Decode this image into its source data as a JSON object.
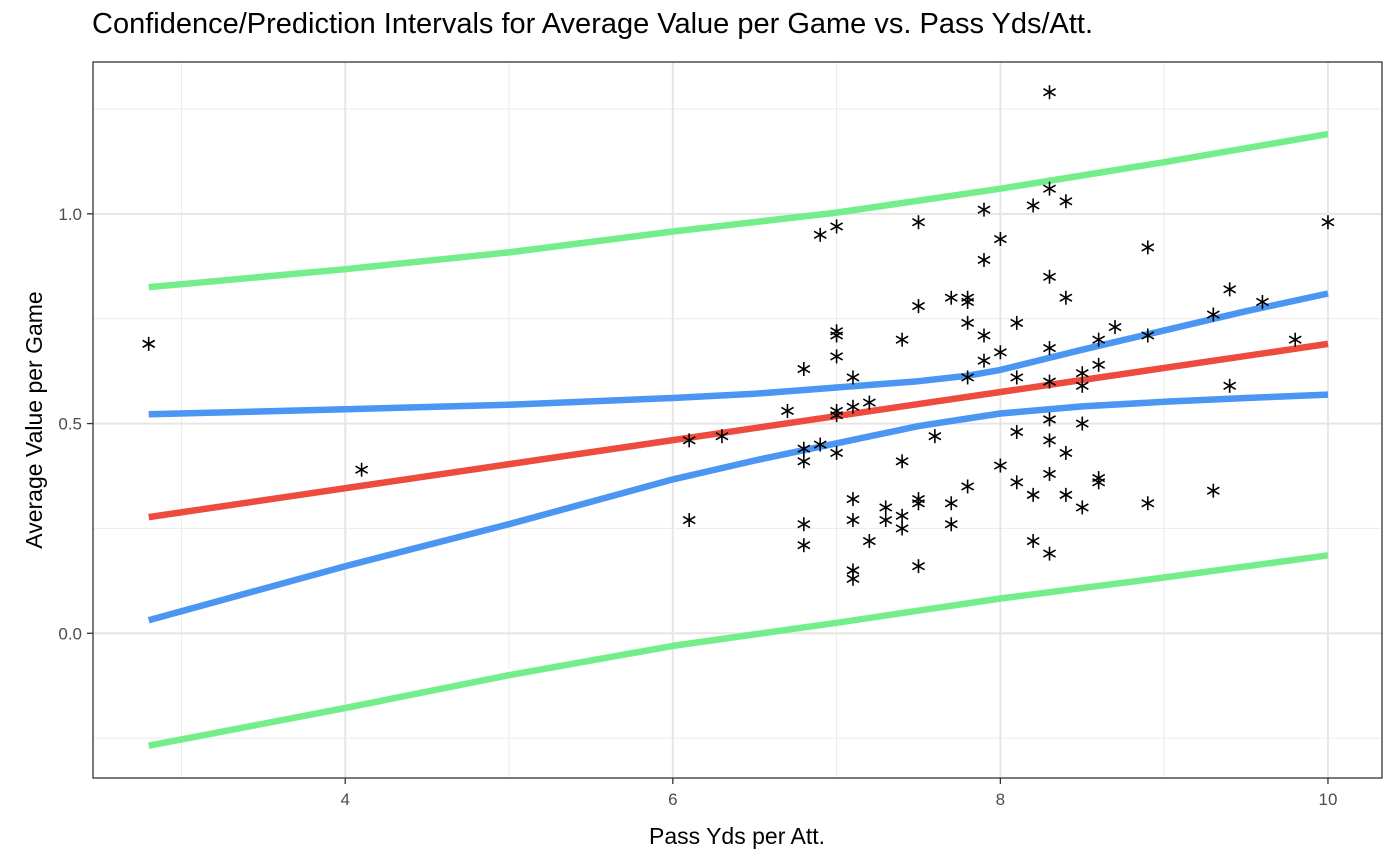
{
  "chart_data": {
    "type": "scatter",
    "title": "Confidence/Prediction Intervals for Average Value per Game vs. Pass Yds/Att.",
    "xlabel": "Pass Yds per Att.",
    "ylabel": "Average Value per Game",
    "xlim": [
      2.46,
      10.33
    ],
    "ylim": [
      -0.345,
      1.362
    ],
    "x_ticks": [
      4,
      6,
      8,
      10
    ],
    "x_tick_labels": [
      "4",
      "6",
      "8",
      "10"
    ],
    "y_ticks": [
      0.0,
      0.5,
      1.0
    ],
    "y_tick_labels": [
      "0.0",
      "0.5",
      "1.0"
    ],
    "grid": true,
    "legend": "none",
    "points": {
      "marker": "asterisk",
      "color": "#000000",
      "x": [
        2.8,
        4.1,
        6.1,
        6.1,
        6.3,
        6.7,
        6.8,
        6.8,
        6.8,
        6.8,
        6.8,
        6.9,
        6.9,
        7.0,
        7.0,
        7.0,
        7.0,
        7.0,
        7.0,
        7.0,
        7.1,
        7.1,
        7.1,
        7.1,
        7.1,
        7.1,
        7.2,
        7.2,
        7.3,
        7.3,
        7.4,
        7.4,
        7.4,
        7.4,
        7.5,
        7.5,
        7.5,
        7.5,
        7.5,
        7.6,
        7.7,
        7.7,
        7.7,
        7.8,
        7.8,
        7.8,
        7.8,
        7.8,
        7.9,
        7.9,
        7.9,
        7.9,
        8.0,
        8.0,
        8.0,
        8.1,
        8.1,
        8.1,
        8.1,
        8.2,
        8.2,
        8.2,
        8.3,
        8.3,
        8.3,
        8.3,
        8.3,
        8.3,
        8.3,
        8.3,
        8.3,
        8.4,
        8.4,
        8.4,
        8.4,
        8.5,
        8.5,
        8.5,
        8.5,
        8.6,
        8.6,
        8.6,
        8.6,
        8.7,
        8.9,
        8.9,
        8.9,
        9.3,
        9.3,
        9.4,
        9.4,
        9.6,
        9.8,
        10.0
      ],
      "y": [
        0.69,
        0.39,
        0.46,
        0.27,
        0.47,
        0.53,
        0.63,
        0.44,
        0.41,
        0.26,
        0.21,
        0.95,
        0.45,
        0.97,
        0.72,
        0.71,
        0.66,
        0.53,
        0.52,
        0.43,
        0.61,
        0.54,
        0.32,
        0.27,
        0.15,
        0.13,
        0.55,
        0.22,
        0.3,
        0.27,
        0.7,
        0.41,
        0.28,
        0.25,
        0.98,
        0.78,
        0.32,
        0.31,
        0.16,
        0.47,
        0.8,
        0.31,
        0.26,
        0.8,
        0.79,
        0.74,
        0.61,
        0.35,
        1.01,
        0.89,
        0.71,
        0.65,
        0.94,
        0.67,
        0.4,
        0.74,
        0.61,
        0.48,
        0.36,
        1.02,
        0.33,
        0.22,
        1.29,
        1.06,
        0.85,
        0.68,
        0.6,
        0.51,
        0.46,
        0.38,
        0.19,
        1.03,
        0.8,
        0.43,
        0.33,
        0.62,
        0.59,
        0.5,
        0.3,
        0.7,
        0.64,
        0.37,
        0.36,
        0.73,
        0.92,
        0.71,
        0.31,
        0.76,
        0.34,
        0.82,
        0.59,
        0.79,
        0.7,
        0.98
      ]
    },
    "series": [
      {
        "role": "fit",
        "color": "#ee4b3f",
        "x": [
          2.8,
          10.0
        ],
        "y": [
          0.277,
          0.69
        ]
      },
      {
        "role": "confidence-upper",
        "color": "#4a96f2",
        "x": [
          2.8,
          4.0,
          5.0,
          6.0,
          6.5,
          7.0,
          7.5,
          7.8,
          8.0,
          8.5,
          9.0,
          9.5,
          10.0
        ],
        "y": [
          0.522,
          0.534,
          0.545,
          0.561,
          0.571,
          0.586,
          0.601,
          0.614,
          0.628,
          0.676,
          0.722,
          0.768,
          0.81
        ]
      },
      {
        "role": "confidence-lower",
        "color": "#4a96f2",
        "x": [
          2.8,
          4.0,
          5.0,
          6.0,
          6.5,
          7.0,
          7.5,
          7.8,
          8.0,
          8.5,
          9.0,
          9.5,
          10.0
        ],
        "y": [
          0.031,
          0.16,
          0.26,
          0.367,
          0.412,
          0.453,
          0.494,
          0.512,
          0.524,
          0.541,
          0.552,
          0.561,
          0.569
        ]
      },
      {
        "role": "prediction-upper",
        "color": "#74ee8a",
        "x": [
          2.8,
          4.0,
          5.0,
          6.0,
          7.0,
          8.0,
          9.0,
          10.0
        ],
        "y": [
          0.825,
          0.868,
          0.908,
          0.958,
          1.003,
          1.06,
          1.123,
          1.19
        ]
      },
      {
        "role": "prediction-lower",
        "color": "#74ee8a",
        "x": [
          2.8,
          4.0,
          5.0,
          6.0,
          7.0,
          8.0,
          9.0,
          10.0
        ],
        "y": [
          -0.268,
          -0.178,
          -0.1,
          -0.03,
          0.025,
          0.083,
          0.133,
          0.186
        ]
      }
    ]
  }
}
